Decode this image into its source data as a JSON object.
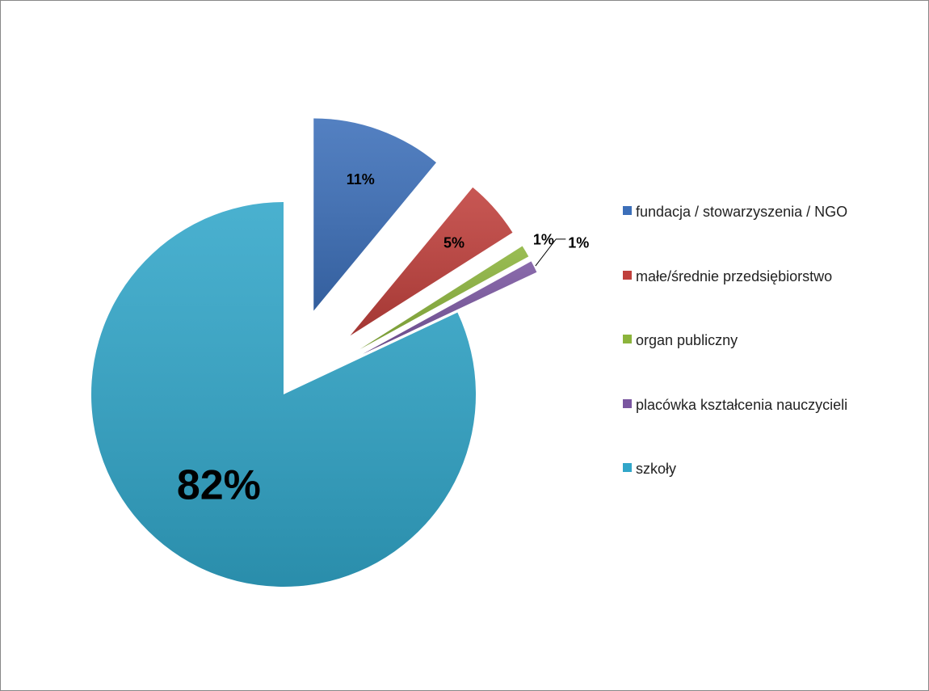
{
  "chart_data": {
    "type": "pie",
    "categories": [
      "fundacja / stowarzyszenia / NGO",
      "małe/średnie przedsiębiorstwo",
      "organ publiczny",
      "placówka kształcenia nauczycieli",
      "szkoły"
    ],
    "values": [
      11,
      5,
      1,
      1,
      82
    ],
    "value_labels": [
      "11%",
      "5%",
      "1%",
      "1%",
      "82%"
    ],
    "colors": [
      "#3c6fb9",
      "#c0403c",
      "#8cb43c",
      "#7a56a0",
      "#31a6c9"
    ],
    "legend": "right"
  }
}
